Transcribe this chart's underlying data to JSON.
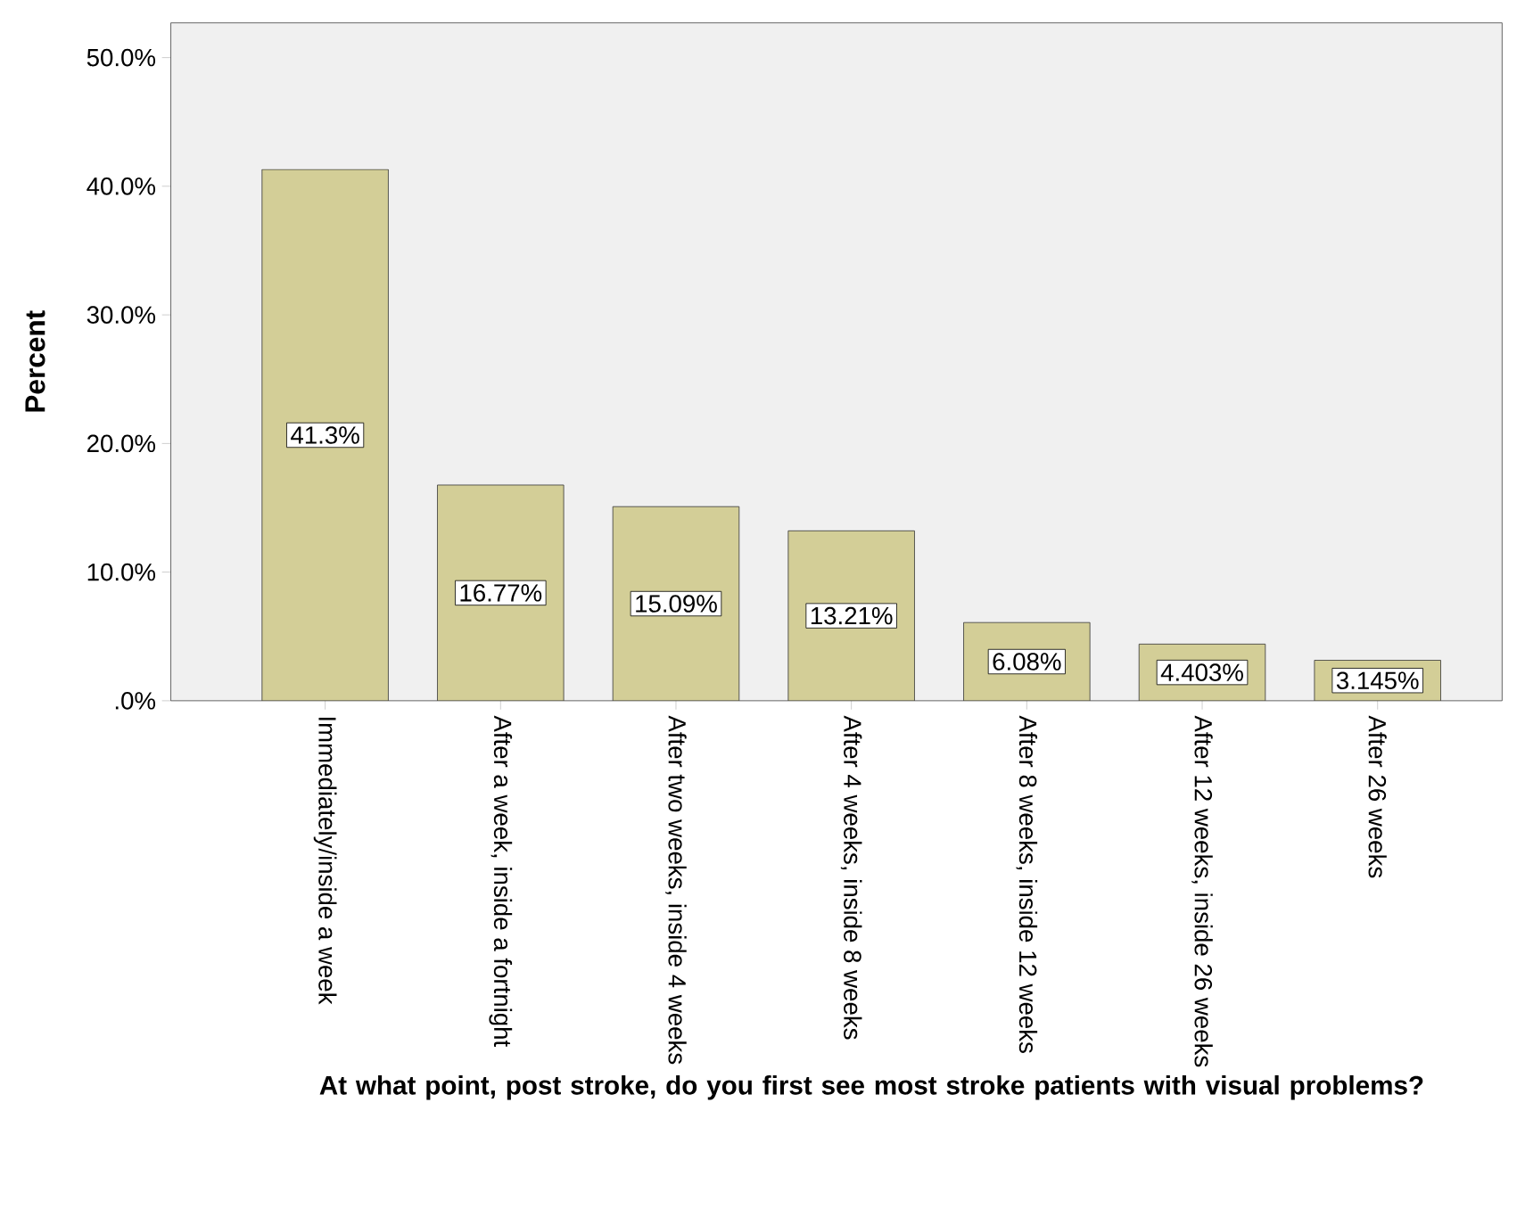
{
  "chart_data": {
    "type": "bar",
    "xlabel": "At what point, post stroke, do you first see most stroke patients with visual problems?",
    "ylabel": "Percent",
    "categories": [
      "Immediately/inside a week",
      "After a week, inside a fortnight",
      "After two weeks, inside 4 weeks",
      "After 4 weeks, inside 8 weeks",
      "After 8 weeks, inside 12 weeks",
      "After 12 weeks, inside 26 weeks",
      "After 26 weeks"
    ],
    "values": [
      41.3,
      16.77,
      15.09,
      13.21,
      6.08,
      4.403,
      3.145
    ],
    "value_labels": [
      "41.3%",
      "16.77%",
      "15.09%",
      "13.21%",
      "6.08%",
      "4.403%",
      "3.145%"
    ],
    "color": "#d3ce97",
    "ylim": [
      0,
      52.7
    ],
    "yticks": [
      {
        "value": 0,
        "label": ".0%"
      },
      {
        "value": 10,
        "label": "10.0%"
      },
      {
        "value": 20,
        "label": "20.0%"
      },
      {
        "value": 30,
        "label": "30.0%"
      },
      {
        "value": 40,
        "label": "40.0%"
      },
      {
        "value": 50,
        "label": "50.0%"
      }
    ]
  }
}
